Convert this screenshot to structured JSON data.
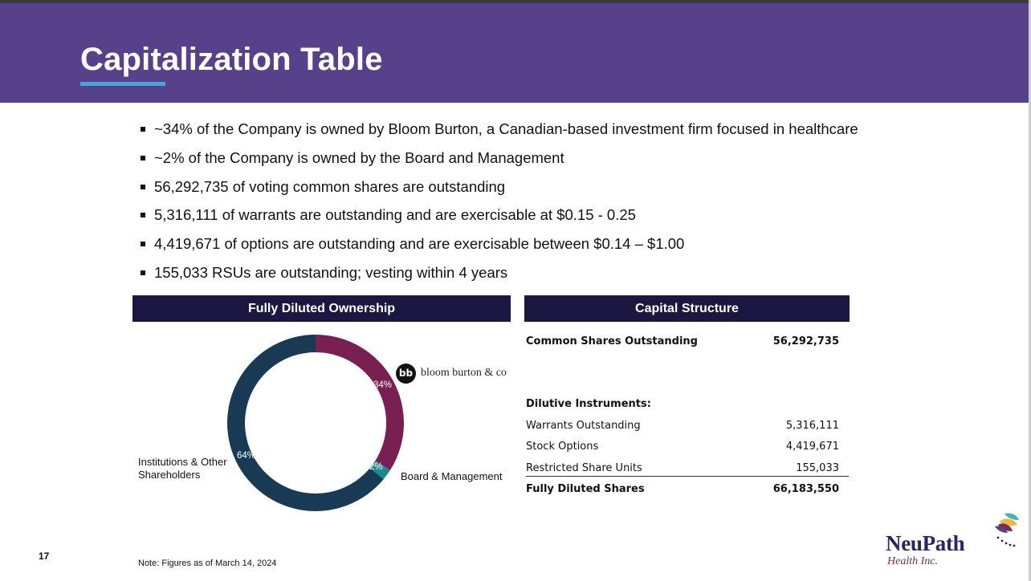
{
  "title": "Capitalization Table",
  "bullets": [
    "~34% of the Company is owned by Bloom Burton, a Canadian-based investment firm focused in healthcare",
    "~2% of the Company is owned by the Board and Management",
    "56,292,735 of voting common shares are outstanding",
    "5,316,111 of warrants are outstanding and are exercisable at $0.15 - 0.25",
    "4,419,671 of options are outstanding and are exercisable between $0.14 – $1.00",
    "155,033 RSUs are outstanding; vesting within 4 years"
  ],
  "ownership": {
    "header": "Fully Diluted Ownership",
    "slices": [
      {
        "label": "Bloom Burton",
        "percent": 34,
        "percent_label": "34%",
        "color": "#7a1f52"
      },
      {
        "label": "Board & Management",
        "percent": 2,
        "percent_label": "2%",
        "color": "#1f8a8c"
      },
      {
        "label": "Institutions & Other Shareholders",
        "percent": 64,
        "percent_label": "64%",
        "color": "#183a55"
      }
    ],
    "label_board": "Board & Management",
    "label_institutions_line1": "Institutions & Other",
    "label_institutions_line2": "Shareholders",
    "bloomburton_logo_text": "bloom burton & co"
  },
  "capital_structure": {
    "header": "Capital Structure",
    "common_label": "Common Shares Outstanding",
    "common_value": "56,292,735",
    "dilutive_label": "Dilutive Instruments:",
    "rows": [
      {
        "label": "Warrants Outstanding",
        "value": "5,316,111"
      },
      {
        "label": "Stock Options",
        "value": "4,419,671"
      },
      {
        "label": "Restricted Share Units",
        "value": "155,033"
      }
    ],
    "total_label": "Fully Diluted Shares",
    "total_value": "66,183,550"
  },
  "page_number": "17",
  "note": "Note: Figures as of March 14, 2024",
  "logo": {
    "name": "NeuPath",
    "subtitle": "Health Inc."
  },
  "colors": {
    "header_bg": "#56418a",
    "accent_underline": "#4aa3df",
    "panel_head": "#1c1642"
  }
}
